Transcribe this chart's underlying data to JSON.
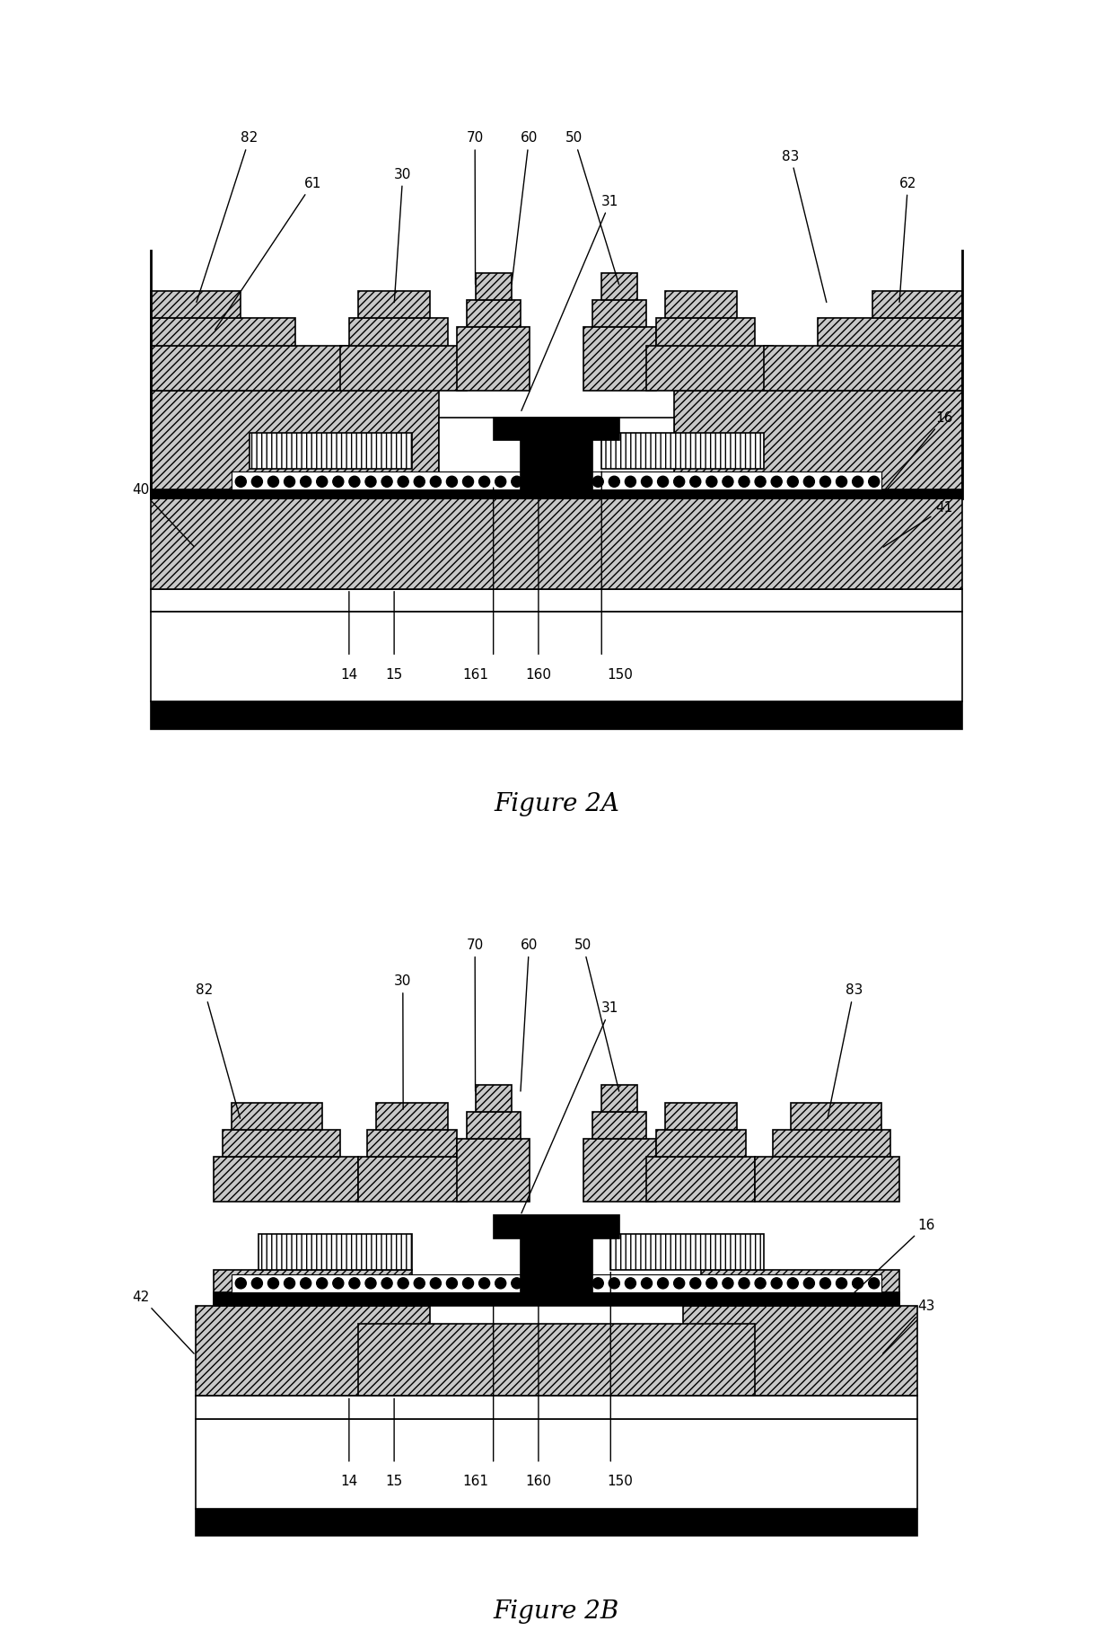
{
  "fig_title_A": "Figure 2A",
  "fig_title_B": "Figure 2B",
  "background_color": "#ffffff",
  "line_color": "#000000",
  "hatch_color": "#000000",
  "fill_light_gray": "#c8c8c8",
  "fill_dark": "#404040",
  "fill_white": "#ffffff",
  "fill_dotted": "#a0a0a0"
}
